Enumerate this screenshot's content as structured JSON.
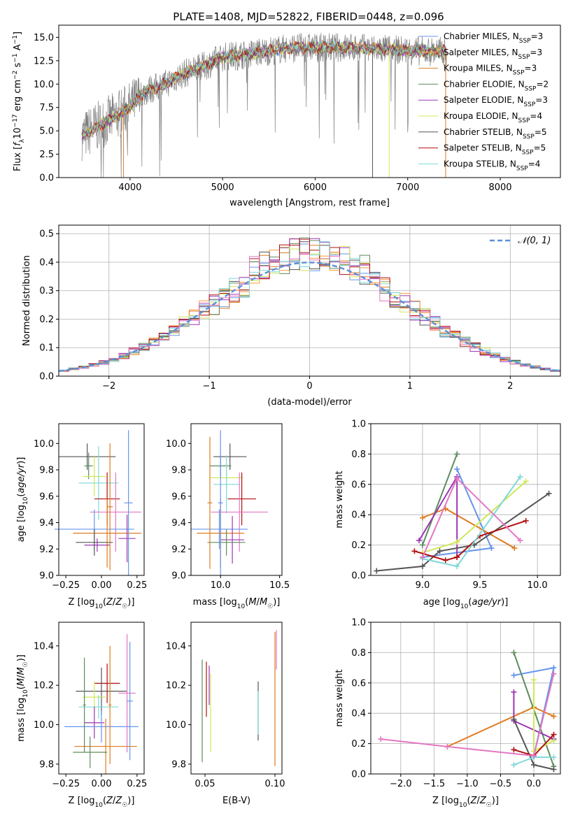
{
  "title": "PLATE=1408, MJD=52822, FIBERID=0448, z=0.096",
  "palette": [
    "#6495ed",
    "#ff9b3a",
    "#e07b20",
    "#5e8c5e",
    "#9c36b5",
    "#cfe85a",
    "#555555",
    "#b01010",
    "#7fd8d8",
    "#e377c2"
  ],
  "chart_data": [
    {
      "type": "line",
      "panel": "spectrum",
      "title": "PLATE=1408, MJD=52822, FIBERID=0448, z=0.096",
      "xlabel": "wavelength [Angstrom, rest frame]",
      "ylabel": "Flux [f_λ10^-17 erg cm^-2 s^-1 A^-1]",
      "xlim": [
        3230,
        8650
      ],
      "ylim": [
        0,
        16.3
      ],
      "xticks": [
        4000,
        5000,
        6000,
        7000,
        8000
      ],
      "yticks": [
        0.0,
        2.5,
        5.0,
        7.5,
        10.0,
        12.5,
        15.0
      ],
      "legend_position": "right",
      "legend": [
        {
          "label": "Chabrier MILES, N_SSP=3",
          "color": "#6495ed"
        },
        {
          "label": "Salpeter MILES, N_SSP=3",
          "color": "#ff9b3a"
        },
        {
          "label": "Kroupa MILES, N_SSP=3",
          "color": "#e07b20"
        },
        {
          "label": "Chabrier ELODIE, N_SSP=2",
          "color": "#5e8c5e"
        },
        {
          "label": "Salpeter ELODIE, N_SSP=3",
          "color": "#9c36b5"
        },
        {
          "label": "Kroupa ELODIE, N_SSP=4",
          "color": "#cfe85a"
        },
        {
          "label": "Chabrier STELIB, N_SSP=5",
          "color": "#555555"
        },
        {
          "label": "Salpeter STELIB, N_SSP=5",
          "color": "#b01010"
        },
        {
          "label": "Kroupa STELIB, N_SSP=4",
          "color": "#7fd8d8"
        }
      ],
      "continuum": {
        "x": [
          3500,
          3600,
          3700,
          3800,
          3900,
          4000,
          4100,
          4200,
          4300,
          4400,
          4500,
          4600,
          4700,
          4800,
          4900,
          5000,
          5200,
          5400,
          5600,
          5800,
          6000,
          6200,
          6400,
          6600,
          6800,
          7000,
          7200,
          7400
        ],
        "y": [
          4.5,
          5.2,
          5.7,
          6.3,
          6.9,
          7.6,
          8.6,
          9.4,
          9.7,
          10.1,
          10.7,
          11.2,
          11.5,
          11.9,
          12.4,
          12.9,
          13.1,
          13.4,
          13.7,
          13.9,
          13.9,
          13.9,
          13.9,
          13.8,
          13.7,
          13.6,
          13.5,
          13.5
        ]
      }
    },
    {
      "type": "histogram",
      "panel": "residuals",
      "xlabel": "(data-model)/error",
      "ylabel": "Normed distribution",
      "xlim": [
        -2.5,
        2.5
      ],
      "ylim": [
        0,
        0.53
      ],
      "xticks": [
        -2,
        -1,
        0,
        1,
        2
      ],
      "yticks": [
        0.0,
        0.1,
        0.2,
        0.3,
        0.4,
        0.5
      ],
      "grid": true,
      "bin_width": 0.1,
      "legend": [
        {
          "label": "𝒩(0, 1)",
          "color": "#5b8fd6",
          "style": "dashed"
        }
      ],
      "legend_position": "top-right"
    },
    {
      "type": "errorbar",
      "panel": "Z-age",
      "xlabel": "Z [log10(Z/Z☉)]",
      "ylabel": "age [log10(age/yr)]",
      "xlim": [
        -0.3,
        0.3
      ],
      "ylim": [
        9.0,
        10.15
      ],
      "xticks": [
        -0.25,
        0.0,
        0.25
      ],
      "yticks": [
        9.0,
        9.2,
        9.4,
        9.6,
        9.8,
        10.0
      ],
      "points": [
        {
          "x": -0.1,
          "y": 9.9,
          "xerr": 0.2,
          "yerr": 0.1,
          "color": "#555555"
        },
        {
          "x": -0.09,
          "y": 9.83,
          "xerr": 0.03,
          "yerr": 0.1,
          "color": "#5e8c5e"
        },
        {
          "x": -0.05,
          "y": 9.75,
          "xerr": 0.08,
          "yerr": 0.15,
          "color": "#cfe85a"
        },
        {
          "x": -0.02,
          "y": 9.7,
          "xerr": 0.14,
          "yerr": 0.28,
          "color": "#7fd8d8"
        },
        {
          "x": 0.04,
          "y": 9.58,
          "xerr": 0.09,
          "yerr": 0.2,
          "color": "#b01010"
        },
        {
          "x": 0.1,
          "y": 9.48,
          "xerr": 0.18,
          "yerr": 0.3,
          "color": "#e377c2"
        },
        {
          "x": -0.05,
          "y": 9.35,
          "xerr": 0.28,
          "yerr": 0.15,
          "color": "#6495ed"
        },
        {
          "x": 0.04,
          "y": 9.32,
          "xerr": 0.24,
          "yerr": 0.26,
          "color": "#e07b20"
        },
        {
          "x": 0.18,
          "y": 9.28,
          "xerr": 0.06,
          "yerr": 0.18,
          "color": "#9c36b5"
        },
        {
          "x": -0.05,
          "y": 9.25,
          "xerr": 0.13,
          "yerr": 0.1,
          "color": "#555555"
        },
        {
          "x": -0.03,
          "y": 9.23,
          "xerr": 0.09,
          "yerr": 0.05,
          "color": "#9c36b5"
        },
        {
          "x": 0.19,
          "y": 9.55,
          "xerr": 0.03,
          "yerr": 0.55,
          "color": "#6495ed"
        },
        {
          "x": 0.06,
          "y": 9.52,
          "xerr": 0.02,
          "yerr": 0.48,
          "color": "#e07b20"
        }
      ]
    },
    {
      "type": "errorbar",
      "panel": "mass-age",
      "xlabel": "mass [log10(M/M☉)]",
      "ylim": [
        9.0,
        10.15
      ],
      "xlim": [
        9.75,
        10.52
      ],
      "xticks": [
        10.0,
        10.5
      ],
      "yticks": [
        9.0,
        9.2,
        9.4,
        9.6,
        9.8,
        10.0
      ],
      "points": [
        {
          "x": 10.08,
          "y": 9.9,
          "xerr": 0.14,
          "yerr": 0.1,
          "color": "#555555"
        },
        {
          "x": 10.0,
          "y": 9.83,
          "xerr": 0.09,
          "yerr": 0.08,
          "color": "#5e8c5e"
        },
        {
          "x": 10.05,
          "y": 9.74,
          "xerr": 0.14,
          "yerr": 0.1,
          "color": "#cfe85a"
        },
        {
          "x": 10.05,
          "y": 9.69,
          "xerr": 0.11,
          "yerr": 0.22,
          "color": "#7fd8d8"
        },
        {
          "x": 10.18,
          "y": 9.58,
          "xerr": 0.12,
          "yerr": 0.2,
          "color": "#b01010"
        },
        {
          "x": 10.16,
          "y": 9.48,
          "xerr": 0.24,
          "yerr": 0.3,
          "color": "#e377c2"
        },
        {
          "x": 9.99,
          "y": 9.35,
          "xerr": 0.24,
          "yerr": 0.15,
          "color": "#6495ed"
        },
        {
          "x": 10.0,
          "y": 9.32,
          "xerr": 0.2,
          "yerr": 0.26,
          "color": "#e07b20"
        },
        {
          "x": 10.1,
          "y": 9.27,
          "xerr": 0.1,
          "yerr": 0.18,
          "color": "#9c36b5"
        },
        {
          "x": 10.05,
          "y": 9.25,
          "xerr": 0.16,
          "yerr": 0.1,
          "color": "#5e8c5e"
        },
        {
          "x": 10.0,
          "y": 9.55,
          "xerr": 0.02,
          "yerr": 0.55,
          "color": "#6495ed"
        },
        {
          "x": 9.91,
          "y": 9.55,
          "xerr": 0.02,
          "yerr": 0.5,
          "color": "#e07b20"
        }
      ]
    },
    {
      "type": "line",
      "panel": "age-weight",
      "xlabel": "age [log10(age/yr)]",
      "ylabel": "mass weight",
      "xlim": [
        8.55,
        10.2
      ],
      "ylim": [
        0,
        1.0
      ],
      "xticks": [
        9.0,
        9.5,
        10.0
      ],
      "yticks": [
        0.0,
        0.2,
        0.4,
        0.6,
        0.8,
        1.0
      ],
      "grid": true,
      "series": [
        {
          "color": "#6495ed",
          "x": [
            9.3,
            9.6,
            9.0
          ],
          "y": [
            0.7,
            0.18,
            0.12
          ]
        },
        {
          "color": "#e07b20",
          "x": [
            9.0,
            9.2,
            9.8
          ],
          "y": [
            0.38,
            0.44,
            0.18
          ]
        },
        {
          "color": "#5e8c5e",
          "x": [
            9.0,
            9.3
          ],
          "y": [
            0.2,
            0.8
          ]
        },
        {
          "color": "#9c36b5",
          "x": [
            8.97,
            9.3,
            9.3
          ],
          "y": [
            0.23,
            0.65,
            0.12
          ]
        },
        {
          "color": "#cfe85a",
          "x": [
            9.0,
            9.3,
            9.9
          ],
          "y": [
            0.15,
            0.22,
            0.62
          ]
        },
        {
          "color": "#555555",
          "x": [
            8.6,
            9.0,
            9.15,
            9.45,
            10.1
          ],
          "y": [
            0.03,
            0.06,
            0.16,
            0.2,
            0.54
          ]
        },
        {
          "color": "#b01010",
          "x": [
            8.93,
            9.2,
            9.3,
            9.5,
            9.9
          ],
          "y": [
            0.16,
            0.1,
            0.12,
            0.26,
            0.36
          ]
        },
        {
          "color": "#7fd8d8",
          "x": [
            9.0,
            9.3,
            9.85
          ],
          "y": [
            0.11,
            0.06,
            0.65
          ]
        },
        {
          "color": "#e377c2",
          "x": [
            9.0,
            9.3,
            9.85
          ],
          "y": [
            0.12,
            0.64,
            0.23
          ]
        }
      ]
    },
    {
      "type": "errorbar",
      "panel": "Z-mass",
      "xlabel": "Z [log10(Z/Z☉)]",
      "ylabel": "mass [log10(M/M☉)]",
      "xlim": [
        -0.3,
        0.3
      ],
      "ylim": [
        9.75,
        10.52
      ],
      "xticks": [
        -0.25,
        0.0,
        0.25
      ],
      "yticks": [
        9.8,
        10.0,
        10.2,
        10.4
      ],
      "points": [
        {
          "x": 0.04,
          "y": 10.21,
          "xerr": 0.09,
          "yerr": 0.1,
          "color": "#b01010"
        },
        {
          "x": 0.0,
          "y": 10.17,
          "xerr": 0.18,
          "yerr": 0.12,
          "color": "#555555"
        },
        {
          "x": -0.05,
          "y": 10.14,
          "xerr": 0.08,
          "yerr": 0.08,
          "color": "#cfe85a"
        },
        {
          "x": -0.02,
          "y": 10.09,
          "xerr": 0.14,
          "yerr": 0.06,
          "color": "#7fd8d8"
        },
        {
          "x": -0.05,
          "y": 10.01,
          "xerr": 0.07,
          "yerr": 0.08,
          "color": "#9c36b5"
        },
        {
          "x": 0.0,
          "y": 9.99,
          "xerr": 0.26,
          "yerr": 0.08,
          "color": "#6495ed"
        },
        {
          "x": 0.03,
          "y": 9.89,
          "xerr": 0.22,
          "yerr": 0.14,
          "color": "#e07b20"
        },
        {
          "x": -0.08,
          "y": 9.86,
          "xerr": 0.12,
          "yerr": 0.08,
          "color": "#5e8c5e"
        },
        {
          "x": 0.18,
          "y": 10.16,
          "xerr": 0.06,
          "yerr": 0.3,
          "color": "#e377c2"
        },
        {
          "x": 0.2,
          "y": 10.12,
          "xerr": 0.02,
          "yerr": 0.3,
          "color": "#6495ed"
        },
        {
          "x": -0.12,
          "y": 10.1,
          "xerr": 0.01,
          "yerr": 0.24,
          "color": "#5e8c5e"
        },
        {
          "x": 0.06,
          "y": 10.1,
          "xerr": 0.01,
          "yerr": 0.3,
          "color": "#e07b20"
        }
      ]
    },
    {
      "type": "errorbar",
      "panel": "EBV-mass",
      "xlabel": "E(B-V)",
      "xlim": [
        0.04,
        0.105
      ],
      "ylim": [
        9.75,
        10.52
      ],
      "xticks": [
        0.05,
        0.1
      ],
      "yticks": [
        9.8,
        10.0,
        10.2,
        10.4
      ],
      "points": [
        {
          "x": 0.048,
          "y": 10.07,
          "xerr": 0.0,
          "yerr": 0.26,
          "color": "#5e8c5e"
        },
        {
          "x": 0.051,
          "y": 10.18,
          "xerr": 0.0,
          "yerr": 0.14,
          "color": "#b01010"
        },
        {
          "x": 0.053,
          "y": 10.2,
          "xerr": 0.0,
          "yerr": 0.1,
          "color": "#9c36b5"
        },
        {
          "x": 0.054,
          "y": 10.06,
          "xerr": 0.0,
          "yerr": 0.2,
          "color": "#cfe85a"
        },
        {
          "x": 0.088,
          "y": 10.07,
          "xerr": 0.0,
          "yerr": 0.15,
          "color": "#555555"
        },
        {
          "x": 0.088,
          "y": 10.06,
          "xerr": 0.0,
          "yerr": 0.11,
          "color": "#7fd8d8"
        },
        {
          "x": 0.1,
          "y": 10.13,
          "xerr": 0.0,
          "yerr": 0.34,
          "color": "#e07b20"
        },
        {
          "x": 0.101,
          "y": 10.38,
          "xerr": 0.0,
          "yerr": 0.1,
          "color": "#e377c2"
        }
      ]
    },
    {
      "type": "line",
      "panel": "Z-weight",
      "xlabel": "Z [log10(Z/Z☉)]",
      "ylabel": "mass weight",
      "xlim": [
        -2.45,
        0.4
      ],
      "ylim": [
        0,
        1.0
      ],
      "xticks": [
        -2.0,
        -1.5,
        -1.0,
        -0.5,
        0.0
      ],
      "yticks": [
        0.0,
        0.2,
        0.4,
        0.6,
        0.8,
        1.0
      ],
      "grid": true,
      "series": [
        {
          "color": "#6495ed",
          "x": [
            -0.3,
            0.3,
            0.0
          ],
          "y": [
            0.65,
            0.7,
            0.12
          ]
        },
        {
          "color": "#e07b20",
          "x": [
            -1.3,
            0.0,
            0.3
          ],
          "y": [
            0.18,
            0.44,
            0.38
          ]
        },
        {
          "color": "#5e8c5e",
          "x": [
            -0.3,
            0.3
          ],
          "y": [
            0.8,
            0.05
          ]
        },
        {
          "color": "#9c36b5",
          "x": [
            -0.3,
            -0.3,
            0.3
          ],
          "y": [
            0.54,
            0.35,
            0.23
          ]
        },
        {
          "color": "#cfe85a",
          "x": [
            0.0,
            0.0,
            0.3
          ],
          "y": [
            0.62,
            0.15,
            0.22
          ]
        },
        {
          "color": "#555555",
          "x": [
            -0.3,
            0.0,
            0.3
          ],
          "y": [
            0.36,
            0.06,
            0.03
          ]
        },
        {
          "color": "#b01010",
          "x": [
            -0.3,
            0.0,
            0.3
          ],
          "y": [
            0.16,
            0.12,
            0.26
          ]
        },
        {
          "color": "#7fd8d8",
          "x": [
            -0.3,
            0.0,
            0.3
          ],
          "y": [
            0.06,
            0.11,
            0.11
          ]
        },
        {
          "color": "#e377c2",
          "x": [
            -2.3,
            -1.3,
            0.0,
            0.3
          ],
          "y": [
            0.23,
            0.18,
            0.12,
            0.66
          ]
        }
      ]
    }
  ]
}
